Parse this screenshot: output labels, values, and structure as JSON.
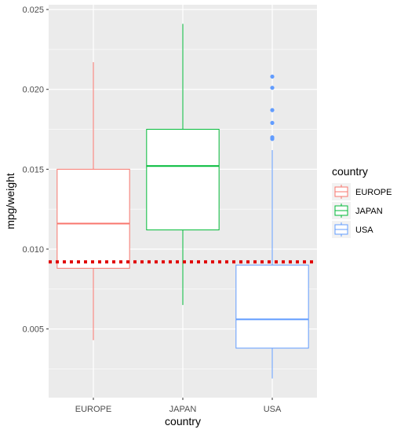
{
  "chart_data": {
    "type": "boxplot",
    "xlabel": "country",
    "ylabel": "mpg/weight",
    "categories": [
      "EUROPE",
      "JAPAN",
      "USA"
    ],
    "ylim": [
      0.0007,
      0.0253
    ],
    "yticks": [
      0.005,
      0.01,
      0.015,
      0.02,
      0.025
    ],
    "ytick_labels": [
      "0.005",
      "0.010",
      "0.015",
      "0.020",
      "0.025"
    ],
    "grid": true,
    "legend": {
      "title": "country",
      "position": "right",
      "entries": [
        "EUROPE",
        "JAPAN",
        "USA"
      ]
    },
    "colors": {
      "EUROPE": "#F8766D",
      "JAPAN": "#00BA38",
      "USA": "#619CFF",
      "reference_line": "#E00000",
      "panel": "#EBEBEB",
      "grid": "#FFFFFF"
    },
    "boxes": [
      {
        "category": "EUROPE",
        "whisker_low": 0.0043,
        "q1": 0.0088,
        "median": 0.0116,
        "q3": 0.015,
        "whisker_high": 0.0217,
        "outliers": []
      },
      {
        "category": "JAPAN",
        "whisker_low": 0.0065,
        "q1": 0.0112,
        "median": 0.0152,
        "q3": 0.0175,
        "whisker_high": 0.0241,
        "outliers": []
      },
      {
        "category": "USA",
        "whisker_low": 0.0019,
        "q1": 0.0038,
        "median": 0.0056,
        "q3": 0.009,
        "whisker_high": 0.0162,
        "outliers": [
          0.0169,
          0.017,
          0.0179,
          0.0187,
          0.0201,
          0.0208
        ]
      }
    ],
    "reference_line": {
      "y": 0.0092,
      "style": "dotted"
    }
  }
}
